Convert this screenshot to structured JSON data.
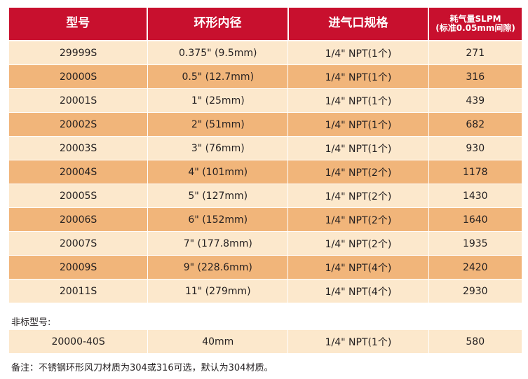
{
  "table": {
    "headers": [
      "型号",
      "环形内径",
      "进气口规格",
      "耗气量SLPM"
    ],
    "header_sub": "(标准0.05mm间隙)",
    "rows": [
      [
        "29999S",
        "0.375\" (9.5mm)",
        "1/4\" NPT(1个)",
        "271"
      ],
      [
        "20000S",
        "0.5\" (12.7mm)",
        "1/4\" NPT(1个)",
        "316"
      ],
      [
        "20001S",
        "1\" (25mm)",
        "1/4\" NPT(1个)",
        "439"
      ],
      [
        "20002S",
        "2\" (51mm)",
        "1/4\" NPT(1个)",
        "682"
      ],
      [
        "20003S",
        "3\" (76mm)",
        "1/4\" NPT(1个)",
        "930"
      ],
      [
        "20004S",
        "4\" (101mm)",
        "1/4\" NPT(2个)",
        "1178"
      ],
      [
        "20005S",
        "5\" (127mm)",
        "1/4\" NPT(2个)",
        "1430"
      ],
      [
        "20006S",
        "6\" (152mm)",
        "1/4\" NPT(2个)",
        "1640"
      ],
      [
        "20007S",
        "7\" (177.8mm)",
        "1/4\" NPT(2个)",
        "1935"
      ],
      [
        "20009S",
        "9\" (228.6mm)",
        "1/4\" NPT(4个)",
        "2420"
      ],
      [
        "20011S",
        "11\" (279mm)",
        "1/4\" NPT(4个)",
        "2930"
      ]
    ]
  },
  "nonstandard": {
    "label": "非标型号:",
    "row": [
      "20000-40S",
      "40mm",
      "1/4\" NPT(1个)",
      "580"
    ]
  },
  "note": "备注：不锈钢环形风刀材质为304或316可选，默认为304材质。",
  "colors": {
    "header_bg": "#c8102e",
    "row_light": "#fce8cc",
    "row_dark": "#f1b57a"
  }
}
